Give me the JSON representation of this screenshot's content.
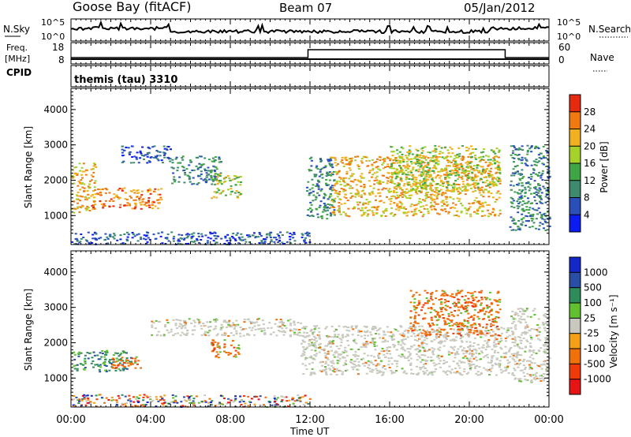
{
  "header": {
    "station": "Goose Bay (fitACF)",
    "beam": "Beam 07",
    "date": "05/Jan/2012"
  },
  "noise_panel": {
    "left_label": "N.Sky",
    "right_label": "N.Search",
    "left_ticks": [
      "10^5",
      "10^0"
    ],
    "right_ticks": [
      "10^5",
      "10^0"
    ]
  },
  "freq_panel": {
    "left_label_1": "Freq.",
    "left_label_2": "[MHz]",
    "cpid_label": "CPID",
    "right_label": "Nave",
    "left_ticks": [
      "18",
      "8"
    ],
    "right_ticks": [
      "60",
      "0"
    ]
  },
  "cpid_panel": {
    "text": "themis (tau) 3310"
  },
  "power_panel": {
    "ylabel": "Slant Range [km]",
    "cbar_label": "Power [dB]",
    "yticks": [
      "4000",
      "3000",
      "2000",
      "1000"
    ],
    "cbar_ticks": [
      "28",
      "24",
      "20",
      "16",
      "12",
      "8",
      "4"
    ],
    "cbar_colors": [
      "#0a1cf0",
      "#2a4fb8",
      "#3d8a6e",
      "#40a545",
      "#a6d12a",
      "#f0b020",
      "#f07a10",
      "#e62a10"
    ]
  },
  "velocity_panel": {
    "ylabel": "Slant Range [km]",
    "cbar_label": "Velocity [m s⁻¹]",
    "yticks": [
      "4000",
      "3000",
      "2000",
      "1000"
    ],
    "cbar_ticks": [
      "1000",
      "500",
      "100",
      "25",
      "-25",
      "-100",
      "-500",
      "-1000"
    ],
    "cbar_colors": [
      "#e61414",
      "#f03a0a",
      "#f0700a",
      "#f5a014",
      "#c8c8be",
      "#60c030",
      "#2d8c5a",
      "#284fa5",
      "#1428c8"
    ]
  },
  "x_axis": {
    "xlabel": "Time UT",
    "ticks": [
      "00:00",
      "04:00",
      "08:00",
      "12:00",
      "16:00",
      "20:00",
      "00:00"
    ]
  },
  "chart_data": {
    "type": "heatmap",
    "title": "Goose Bay (fitACF)  Beam 07  05/Jan/2012",
    "xlabel": "Time UT",
    "ylabel": "Slant Range [km]",
    "xlim": [
      "00:00",
      "24:00"
    ],
    "ylim": [
      180,
      4600
    ],
    "panels": [
      {
        "name": "Power",
        "units": "dB",
        "colorbar_ticks": [
          4,
          8,
          12,
          16,
          20,
          24,
          28
        ],
        "features": [
          {
            "t0": 0.0,
            "t1": 1.2,
            "r0": 1100,
            "r1": 2500,
            "level": "medium-high"
          },
          {
            "t0": 1.0,
            "t1": 4.5,
            "r0": 1200,
            "r1": 1800,
            "level": "high"
          },
          {
            "t0": 2.5,
            "t1": 5.0,
            "r0": 2500,
            "r1": 3000,
            "level": "low"
          },
          {
            "t0": 5.0,
            "t1": 7.5,
            "r0": 1900,
            "r1": 2700,
            "level": "low-medium"
          },
          {
            "t0": 7.0,
            "t1": 8.5,
            "r0": 1500,
            "r1": 2200,
            "level": "medium"
          },
          {
            "t0": 11.8,
            "t1": 13.2,
            "r0": 900,
            "r1": 2700,
            "level": "low-medium"
          },
          {
            "t0": 13.0,
            "t1": 21.5,
            "r0": 1000,
            "r1": 2700,
            "level": "medium-high"
          },
          {
            "t0": 16.0,
            "t1": 21.5,
            "r0": 1700,
            "r1": 3000,
            "level": "medium"
          },
          {
            "t0": 22.0,
            "t1": 24.0,
            "r0": 600,
            "r1": 3000,
            "level": "low-medium"
          },
          {
            "t0": 0.0,
            "t1": 12.0,
            "r0": 200,
            "r1": 550,
            "level": "low"
          }
        ]
      },
      {
        "name": "Velocity",
        "units": "m s^-1",
        "colorbar_ticks": [
          1000,
          500,
          100,
          25,
          -25,
          -100,
          -500,
          -1000
        ],
        "features": [
          {
            "t0": 0.0,
            "t1": 3.0,
            "r0": 1200,
            "r1": 1800,
            "level": "positive (blue/green)"
          },
          {
            "t0": 2.0,
            "t1": 3.5,
            "r0": 1300,
            "r1": 1700,
            "level": "negative (orange)"
          },
          {
            "t0": 7.0,
            "t1": 8.5,
            "r0": 1600,
            "r1": 2100,
            "level": "negative (orange)"
          },
          {
            "t0": 4.0,
            "t1": 11.5,
            "r0": 2200,
            "r1": 2700,
            "level": "near zero (grey)"
          },
          {
            "t0": 11.5,
            "t1": 22.0,
            "r0": 1100,
            "r1": 2500,
            "level": "near zero (grey)"
          },
          {
            "t0": 17.0,
            "t1": 21.5,
            "r0": 2200,
            "r1": 3500,
            "level": "negative (orange)"
          },
          {
            "t0": 22.0,
            "t1": 24.0,
            "r0": 900,
            "r1": 3000,
            "level": "near zero (grey)"
          },
          {
            "t0": 0.0,
            "t1": 12.0,
            "r0": 200,
            "r1": 550,
            "level": "ground scatter mix"
          }
        ]
      }
    ]
  }
}
